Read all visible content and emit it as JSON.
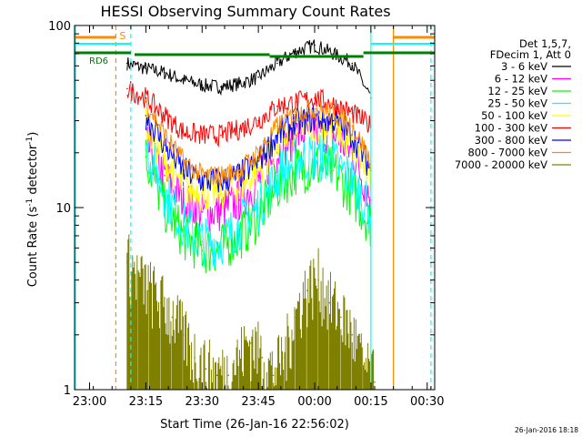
{
  "chart_data": {
    "type": "line",
    "title": "HESSI Observing Summary Count Rates",
    "xlabel": "Start Time (26-Jan-16 22:56:02)",
    "ylabel_main": "Count Rate (s",
    "ylabel_sup": "-1",
    "ylabel_tail": " detector",
    "ylabel_close": ")",
    "yscale": "log",
    "ylim": [
      1,
      100
    ],
    "xlim": [
      "22:56",
      "00:32"
    ],
    "x_ticks": [
      "23:00",
      "23:15",
      "23:30",
      "23:45",
      "00:00",
      "00:15",
      "00:30"
    ],
    "y_ticks": [
      "1",
      "10",
      "100"
    ],
    "legend_header": [
      "Det 1,5,7,",
      "FDecim 1, Att 0"
    ],
    "legend_position": "right",
    "series": [
      {
        "name": "3 - 6 keV",
        "color": "#000000",
        "x": [
          "23:10",
          "23:15",
          "23:20",
          "23:25",
          "23:30",
          "23:35",
          "23:40",
          "23:45",
          "23:50",
          "23:55",
          "00:00",
          "00:05",
          "00:10",
          "00:15"
        ],
        "values": [
          62,
          58,
          55,
          50,
          47,
          46,
          48,
          52,
          62,
          72,
          78,
          70,
          62,
          40
        ]
      },
      {
        "name": "6 - 12 keV",
        "color": "#ff00ff",
        "x": [
          "23:15",
          "23:20",
          "23:25",
          "23:30",
          "23:35",
          "23:40",
          "23:45",
          "23:50",
          "23:55",
          "00:00",
          "00:05",
          "00:10",
          "00:15"
        ],
        "values": [
          22,
          15,
          11,
          9.5,
          9.5,
          11,
          14,
          20,
          25,
          27,
          25,
          20,
          11
        ]
      },
      {
        "name": "12 - 25 keV",
        "color": "#00ff00",
        "x": [
          "23:15",
          "23:20",
          "23:25",
          "23:30",
          "23:35",
          "23:40",
          "23:45",
          "23:50",
          "23:55",
          "00:00",
          "00:05",
          "00:10",
          "00:15"
        ],
        "values": [
          19,
          10,
          7,
          5.8,
          6,
          7,
          9,
          13,
          16,
          17,
          16,
          12,
          8
        ]
      },
      {
        "name": "25 - 50 keV",
        "color": "#00ffff",
        "x": [
          "23:15",
          "23:20",
          "23:25",
          "23:30",
          "23:35",
          "23:40",
          "23:45",
          "23:50",
          "23:55",
          "00:00",
          "00:05",
          "00:10",
          "00:15"
        ],
        "values": [
          22,
          12,
          8,
          6.5,
          6.5,
          8,
          10,
          15,
          18,
          19,
          18,
          14,
          9
        ]
      },
      {
        "name": "50 - 100 keV",
        "color": "#ffff00",
        "x": [
          "23:15",
          "23:20",
          "23:25",
          "23:30",
          "23:35",
          "23:40",
          "23:45",
          "23:50",
          "23:55",
          "00:00",
          "00:05",
          "00:10",
          "00:15"
        ],
        "values": [
          28,
          18,
          13,
          12,
          12,
          13,
          16,
          22,
          27,
          29,
          27,
          22,
          14
        ]
      },
      {
        "name": "100 - 300 keV",
        "color": "#ff0000",
        "x": [
          "23:10",
          "23:15",
          "23:20",
          "23:25",
          "23:30",
          "23:35",
          "23:40",
          "23:45",
          "23:50",
          "23:55",
          "00:00",
          "00:05",
          "00:10",
          "00:15"
        ],
        "values": [
          45,
          40,
          32,
          26,
          25,
          25,
          27,
          30,
          36,
          38,
          40,
          37,
          33,
          28
        ]
      },
      {
        "name": "300 - 800 keV",
        "color": "#0000ff",
        "x": [
          "23:15",
          "23:20",
          "23:25",
          "23:30",
          "23:35",
          "23:40",
          "23:45",
          "23:50",
          "23:55",
          "00:00",
          "00:05",
          "00:10",
          "00:15"
        ],
        "values": [
          32,
          22,
          16,
          14,
          14,
          15,
          18,
          25,
          29,
          31,
          30,
          25,
          16
        ]
      },
      {
        "name": "800 - 7000 keV",
        "color": "#ff8c00",
        "x": [
          "23:15",
          "23:20",
          "23:25",
          "23:30",
          "23:35",
          "23:40",
          "23:45",
          "23:50",
          "23:55",
          "00:00",
          "00:05",
          "00:10",
          "00:15"
        ],
        "values": [
          38,
          25,
          18,
          15,
          15,
          16,
          20,
          28,
          33,
          35,
          33,
          28,
          18
        ]
      },
      {
        "name": "7000 - 20000 keV",
        "color": "#808000",
        "x": [
          "23:10",
          "23:13",
          "23:16",
          "23:19",
          "23:22",
          "23:25",
          "23:28",
          "23:31",
          "23:34",
          "23:37",
          "23:40",
          "23:43",
          "23:46",
          "23:49",
          "23:52",
          "23:55",
          "23:58",
          "00:01",
          "00:04",
          "00:07",
          "00:10",
          "00:13",
          "00:16"
        ],
        "values": [
          5,
          4,
          3.5,
          3,
          2.5,
          2,
          1.5,
          1.3,
          1.2,
          1.2,
          1.5,
          1.8,
          1.5,
          1.2,
          1.5,
          2.5,
          3.5,
          4,
          3,
          2.5,
          2,
          1.3,
          1.1
        ]
      }
    ],
    "vertical_markers": [
      {
        "x": "23:07",
        "color": "#ff8c00",
        "style": "dashed"
      },
      {
        "x": "23:11",
        "color": "#00ffff",
        "style": "dashed"
      },
      {
        "x": "00:15",
        "color": "#00ffff",
        "style": "solid"
      },
      {
        "x": "00:21",
        "color": "#ff8c00",
        "style": "solid"
      },
      {
        "x": "00:31",
        "color": "#00ffff",
        "style": "dashed"
      }
    ],
    "flags": [
      {
        "label": "S",
        "color": "#ff8c00"
      },
      {
        "label": "RD6",
        "color": "#008000"
      }
    ],
    "timestamp": "26-Jan-2016 18:18"
  }
}
